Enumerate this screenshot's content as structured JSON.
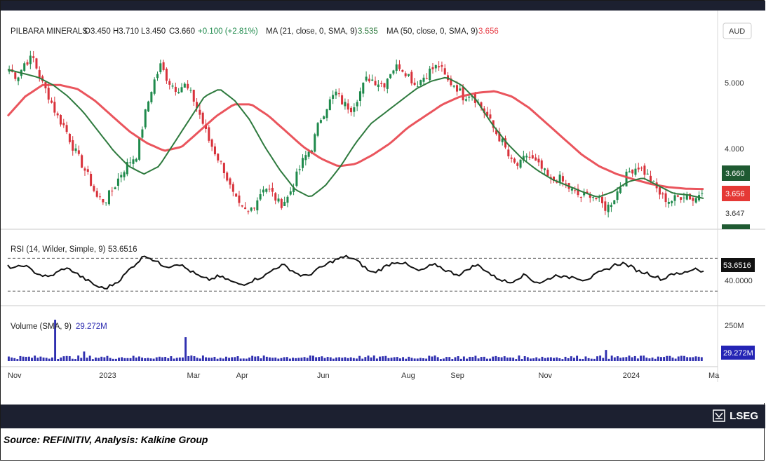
{
  "header": {
    "symbol": "PILBARA MINERALS",
    "open": "O3.450",
    "high": "H3.710",
    "low": "L3.450",
    "close": "C3.660",
    "change": "+0.100 (+2.81%)",
    "ma1_label": "MA (21, close, 0, SMA, 9)",
    "ma1_value": "3.535",
    "ma2_label": "MA (50, close, 0, SMA, 9)",
    "ma2_value": "3.656",
    "currency": "AUD"
  },
  "price_axis": {
    "ticks": [
      "5.000",
      "4.000"
    ],
    "badge_close": "3.660",
    "badge_ma": "3.656",
    "extra_label": "3.647"
  },
  "rsi_panel": {
    "label": "RSI (14, Wilder, Simple, 9)",
    "value": "53.6516",
    "badge": "53.6516",
    "level_label": "40.0000"
  },
  "volume_panel": {
    "label": "Volume (SMA, 9)",
    "value": "29.272M",
    "axis_label": "250M",
    "badge": "29.272M"
  },
  "time_axis": [
    "Nov",
    "2023",
    "Mar",
    "Apr",
    "Jun",
    "Aug",
    "Sep",
    "Nov",
    "2024",
    "Ma"
  ],
  "footer": {
    "brand": "LSEG",
    "source": "Source: REFINITIV, Analysis: Kalkine Group"
  },
  "colors": {
    "up": "#1f8a4c",
    "down": "#d8323b",
    "ma21": "#2e7a3e",
    "ma50": "#e8434b",
    "rsi": "#111111",
    "volume": "#3030b0",
    "dark_bar": "#1c2030"
  },
  "chart_data": {
    "type": "candlestick",
    "price_ylim": [
      3.2,
      5.6
    ],
    "price_ticks": [
      4.0,
      5.0
    ],
    "close_path": [
      5.2,
      5.1,
      5.3,
      5.35,
      5.05,
      4.85,
      4.6,
      4.45,
      4.2,
      4.0,
      3.8,
      3.55,
      3.5,
      3.65,
      3.85,
      4.0,
      4.1,
      4.6,
      5.0,
      5.25,
      5.05,
      4.95,
      5.0,
      4.85,
      4.6,
      4.3,
      4.1,
      3.9,
      3.6,
      3.4,
      3.35,
      3.5,
      3.7,
      3.6,
      3.45,
      3.55,
      3.8,
      4.05,
      4.2,
      4.55,
      4.75,
      4.9,
      4.75,
      4.7,
      4.9,
      5.1,
      5.05,
      5.0,
      5.2,
      5.25,
      5.15,
      5.0,
      5.1,
      5.2,
      5.25,
      5.05,
      5.0,
      4.85,
      4.9,
      4.75,
      4.6,
      4.4,
      4.25,
      4.0,
      3.95,
      4.1,
      4.0,
      3.9,
      3.75,
      3.8,
      3.7,
      3.6,
      3.55,
      3.6,
      3.5,
      3.4,
      3.55,
      3.75,
      3.9,
      3.95,
      3.85,
      3.7,
      3.55,
      3.5,
      3.55,
      3.6,
      3.5,
      3.66
    ],
    "ma21_path": [
      5.2,
      5.15,
      5.1,
      5.0,
      4.85,
      4.65,
      4.4,
      4.15,
      3.95,
      3.85,
      3.95,
      4.25,
      4.55,
      4.85,
      4.95,
      4.8,
      4.55,
      4.2,
      3.9,
      3.65,
      3.55,
      3.7,
      3.95,
      4.25,
      4.5,
      4.65,
      4.8,
      4.95,
      5.05,
      5.1,
      5.0,
      4.8,
      4.5,
      4.25,
      4.05,
      3.9,
      3.78,
      3.7,
      3.62,
      3.55,
      3.62,
      3.75,
      3.8,
      3.7,
      3.6,
      3.58,
      3.535
    ],
    "ma50_path": [
      4.6,
      4.85,
      5.0,
      5.0,
      4.95,
      4.8,
      4.6,
      4.4,
      4.25,
      4.15,
      4.2,
      4.4,
      4.6,
      4.75,
      4.75,
      4.6,
      4.4,
      4.2,
      4.05,
      3.95,
      3.98,
      4.1,
      4.25,
      4.45,
      4.6,
      4.75,
      4.85,
      4.9,
      4.92,
      4.85,
      4.7,
      4.5,
      4.3,
      4.1,
      3.95,
      3.85,
      3.78,
      3.72,
      3.68,
      3.66,
      3.656
    ],
    "rsi_ylim": [
      20,
      90
    ],
    "rsi_levels": [
      30,
      70
    ],
    "rsi_path": [
      60,
      58,
      62,
      55,
      50,
      47,
      52,
      58,
      55,
      48,
      42,
      36,
      33,
      38,
      45,
      56,
      65,
      74,
      68,
      62,
      60,
      64,
      58,
      52,
      46,
      44,
      48,
      45,
      40,
      38,
      42,
      46,
      50,
      58,
      62,
      56,
      50,
      48,
      55,
      60,
      66,
      70,
      72,
      68,
      60,
      52,
      56,
      62,
      66,
      64,
      58,
      54,
      60,
      62,
      56,
      52,
      50,
      58,
      62,
      56,
      48,
      44,
      40,
      46,
      50,
      42,
      40,
      46,
      50,
      46,
      48,
      44,
      46,
      52,
      56,
      62,
      64,
      60,
      54,
      52,
      48,
      44,
      52,
      50,
      54,
      58,
      53.65
    ],
    "volume_ylim": [
      0,
      300
    ],
    "volume_spikes": [
      {
        "position": 0.066,
        "value": 260
      },
      {
        "position": 0.253,
        "value": 150
      },
      {
        "position": 0.11,
        "value": 60
      },
      {
        "position": 0.86,
        "value": 70
      }
    ],
    "volume_base": 25,
    "x_ticks": [
      "Nov",
      "2023",
      "Mar",
      "Apr",
      "Jun",
      "Aug",
      "Sep",
      "Nov",
      "2024",
      "Ma"
    ]
  }
}
